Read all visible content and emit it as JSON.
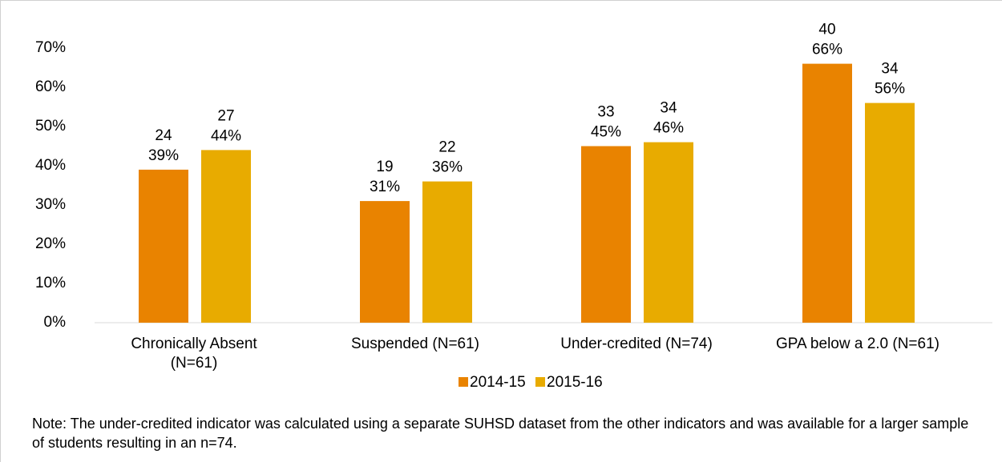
{
  "chart_data": {
    "type": "bar",
    "categories": [
      "Chronically Absent\n(N=61)",
      "Suspended (N=61)",
      "Under-credited (N=74)",
      "GPA below a 2.0 (N=61)"
    ],
    "series": [
      {
        "name": "2014-15",
        "color": "#e98300",
        "values": [
          39,
          31,
          45,
          66
        ],
        "value_labels": [
          "39%",
          "31%",
          "45%",
          "66%"
        ],
        "counts": [
          24,
          19,
          33,
          40
        ]
      },
      {
        "name": "2015-16",
        "color": "#e8ab00",
        "values": [
          44,
          36,
          46,
          56
        ],
        "value_labels": [
          "44%",
          "36%",
          "46%",
          "56%"
        ],
        "counts": [
          27,
          22,
          34,
          34
        ]
      }
    ],
    "ylim": [
      0,
      70
    ],
    "yticks": [
      {
        "value": 0,
        "label": "0%"
      },
      {
        "value": 10,
        "label": "10%"
      },
      {
        "value": 20,
        "label": "20%"
      },
      {
        "value": 30,
        "label": "30%"
      },
      {
        "value": 40,
        "label": "40%"
      },
      {
        "value": 50,
        "label": "50%"
      },
      {
        "value": 60,
        "label": "60%"
      },
      {
        "value": 70,
        "label": "70%"
      }
    ],
    "legend": "bottom",
    "note": "Note: The under-credited indicator was calculated using a separate SUHSD dataset from the other indicators and was available for a larger sample of students resulting in an n=74."
  }
}
